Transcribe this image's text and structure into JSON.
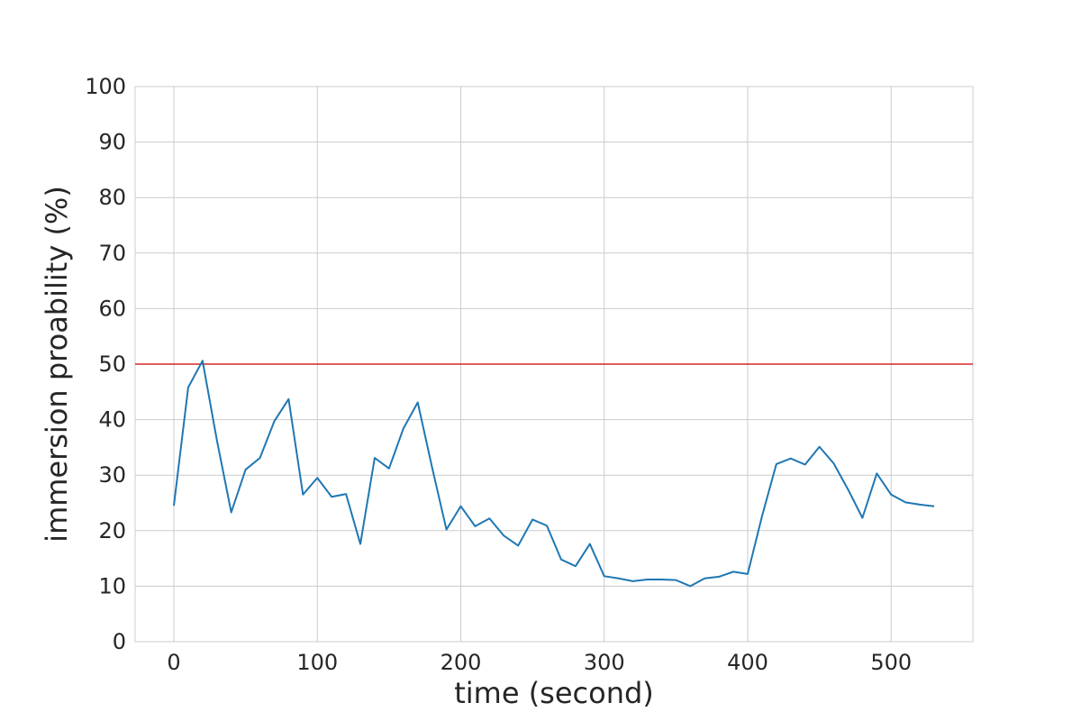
{
  "chart_data": {
    "type": "line",
    "title": "",
    "xlabel": "time (second)",
    "ylabel": "immersion proability (%)",
    "xlim": [
      -27,
      557
    ],
    "ylim": [
      0,
      100
    ],
    "xticks": [
      0,
      100,
      200,
      300,
      400,
      500
    ],
    "yticks": [
      0,
      10,
      20,
      30,
      40,
      50,
      60,
      70,
      80,
      90,
      100
    ],
    "grid": true,
    "series": [
      {
        "color": "#1f77b4",
        "x": [
          0,
          10,
          20,
          30,
          40,
          50,
          60,
          70,
          80,
          90,
          100,
          110,
          120,
          130,
          140,
          150,
          160,
          170,
          180,
          190,
          200,
          210,
          220,
          230,
          240,
          250,
          260,
          270,
          280,
          290,
          300,
          310,
          320,
          330,
          340,
          350,
          360,
          370,
          380,
          390,
          400,
          410,
          420,
          430,
          440,
          450,
          460,
          470,
          480,
          490,
          500,
          510,
          520,
          530
        ],
        "y": [
          24.5,
          45.8,
          50.6,
          36.3,
          23.3,
          31.0,
          33.1,
          39.7,
          43.7,
          26.5,
          29.5,
          26.1,
          26.6,
          17.6,
          33.1,
          31.2,
          38.4,
          43.1,
          31.4,
          20.2,
          24.4,
          20.8,
          22.2,
          19.1,
          17.3,
          22.0,
          20.9,
          14.8,
          13.6,
          17.6,
          11.8,
          11.4,
          10.9,
          11.2,
          11.2,
          11.1,
          10.0,
          11.4,
          11.7,
          12.6,
          12.2,
          22.6,
          32.0,
          33.0,
          31.9,
          35.1,
          32.1,
          27.4,
          22.3,
          30.3,
          26.5,
          25.1,
          24.7,
          24.4
        ]
      }
    ],
    "reference_line": {
      "y": 50,
      "color": "#d62728"
    }
  }
}
